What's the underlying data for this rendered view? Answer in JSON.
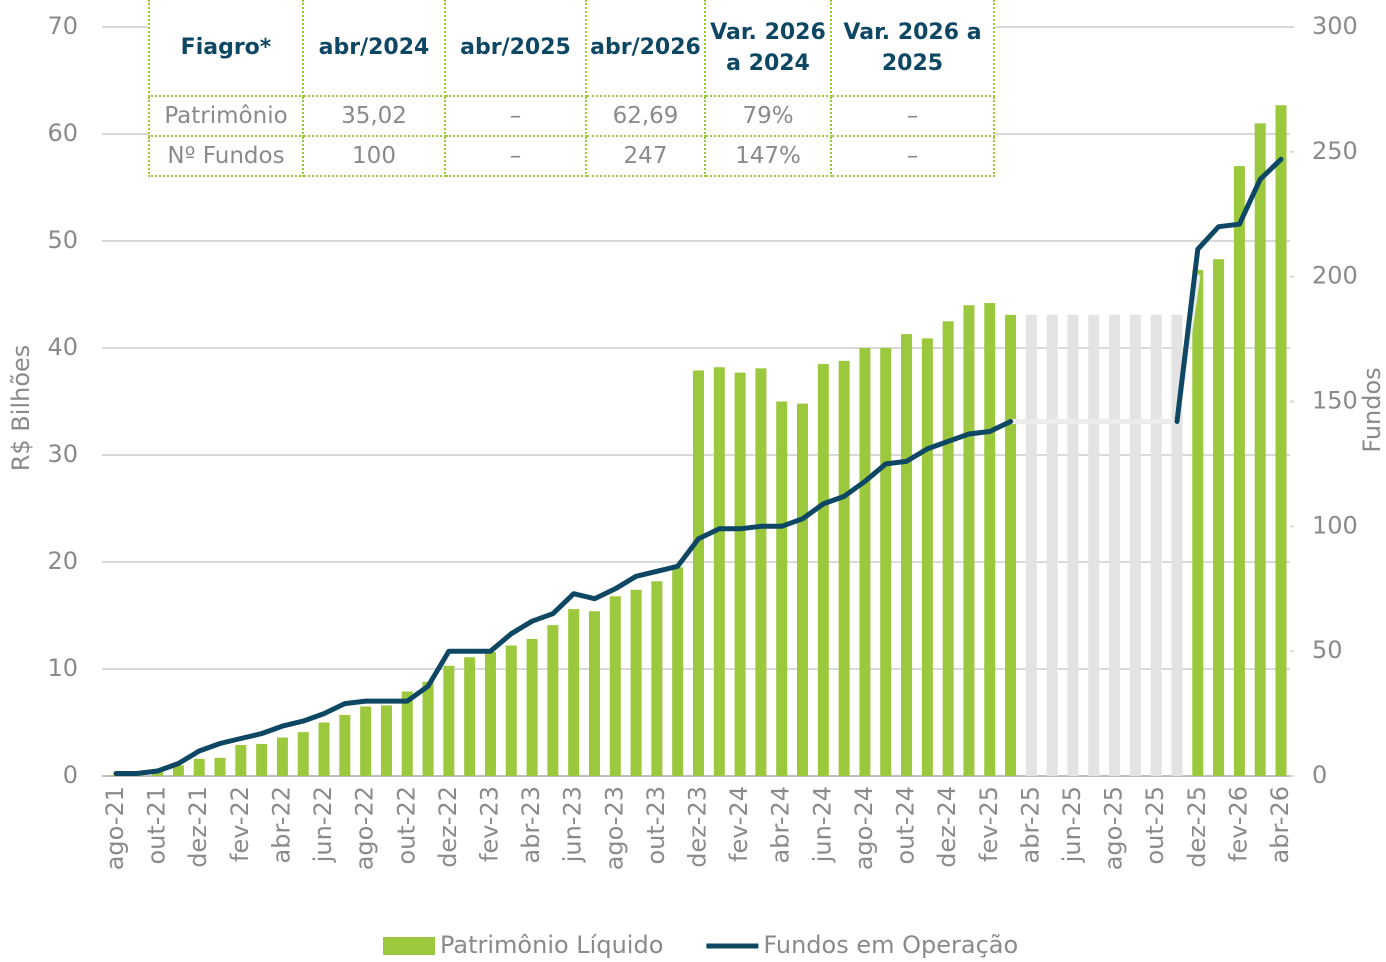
{
  "chart_data": {
    "type": "combo",
    "y_label": "R$ Bilhões",
    "y2_label": "Fundos",
    "categories": [
      "ago-21",
      null,
      "out-21",
      null,
      "dez-21",
      null,
      "fev-22",
      null,
      "abr-22",
      null,
      "jun-22",
      null,
      "ago-22",
      null,
      "out-22",
      null,
      "dez-22",
      null,
      "fev-23",
      null,
      "abr-23",
      null,
      "jun-23",
      null,
      "ago-23",
      null,
      "out-23",
      null,
      "dez-23",
      null,
      "fev-24",
      null,
      "abr-24",
      null,
      "jun-24",
      null,
      "ago-24",
      null,
      "out-24",
      null,
      "dez-24",
      null,
      "fev-25",
      null,
      "abr-25",
      null,
      "jun-25",
      null,
      "ago-25",
      null,
      "out-25",
      null,
      "dez-25",
      null,
      "fev-26",
      null,
      "abr-26"
    ],
    "series": [
      {
        "type": "bar",
        "color": "#e3e3e3",
        "values": [
          null,
          null,
          null,
          null,
          null,
          null,
          null,
          null,
          null,
          null,
          null,
          null,
          null,
          null,
          null,
          null,
          null,
          null,
          null,
          null,
          null,
          null,
          null,
          null,
          null,
          null,
          null,
          null,
          null,
          null,
          null,
          null,
          null,
          null,
          null,
          null,
          null,
          null,
          null,
          null,
          null,
          null,
          null,
          null,
          43.1,
          43.1,
          43.1,
          43.1,
          43.1,
          43.1,
          43.1,
          43.1,
          null,
          null,
          null,
          null,
          null
        ]
      },
      {
        "type": "bar",
        "name": "Patrimônio Líquido",
        "color": "#9bc83c",
        "values": [
          0.1,
          0.2,
          0.5,
          1,
          1.6,
          1.7,
          2.9,
          3,
          3.6,
          4.1,
          5,
          5.7,
          6.5,
          6.6,
          7.9,
          8.8,
          10.3,
          11.1,
          11.6,
          12.2,
          12.8,
          14.1,
          15.6,
          15.4,
          16.8,
          17.4,
          18.2,
          19.5,
          37.9,
          38.2,
          37.7,
          38.1,
          35,
          34.8,
          38.5,
          38.8,
          40,
          40,
          41.3,
          40.9,
          42.5,
          44,
          44.2,
          43.1,
          null,
          null,
          null,
          null,
          null,
          null,
          null,
          null,
          47.3,
          48.3,
          57,
          61,
          62.69
        ]
      },
      {
        "type": "line",
        "axis": "y2",
        "color": "#ececec",
        "values": [
          null,
          null,
          null,
          null,
          null,
          null,
          null,
          null,
          null,
          null,
          null,
          null,
          null,
          null,
          null,
          null,
          null,
          null,
          null,
          null,
          null,
          null,
          null,
          null,
          null,
          null,
          null,
          null,
          null,
          null,
          null,
          null,
          null,
          null,
          null,
          null,
          null,
          null,
          null,
          null,
          null,
          null,
          null,
          142,
          142,
          142,
          142,
          142,
          142,
          142,
          142,
          142,
          200,
          null,
          null,
          null,
          null
        ]
      },
      {
        "type": "line",
        "axis": "y2",
        "name": "Fundos em Operação",
        "color": "#0d4763",
        "values": [
          1,
          1,
          2,
          5,
          10,
          13,
          15,
          17,
          20,
          22,
          25,
          29,
          30,
          30,
          30,
          36,
          50,
          50,
          50,
          57,
          62,
          65,
          73,
          71,
          75,
          80,
          82,
          84,
          95,
          99,
          99,
          100,
          100,
          103,
          109,
          112,
          118,
          125,
          126,
          131,
          134,
          137,
          138,
          142,
          null,
          null,
          null,
          null,
          null,
          null,
          null,
          142,
          211,
          220,
          221,
          239,
          247
        ]
      }
    ],
    "ylim": [
      0,
      70
    ],
    "yticks": [
      0,
      10,
      20,
      30,
      40,
      50,
      60,
      70
    ],
    "y2lim": [
      0,
      300
    ],
    "y2ticks": [
      0,
      50,
      100,
      150,
      200,
      250,
      300
    ],
    "grid": true
  },
  "table": {
    "header": [
      "Fiagro*",
      "abr/2024",
      "abr/2025",
      "abr/2026",
      "Var. 2026 a 2024",
      "Var. 2026 a 2025"
    ],
    "rows": [
      [
        "Patrimônio",
        "35,02",
        "–",
        "62,69",
        "79%",
        "–"
      ],
      [
        "Nº Fundos",
        "100",
        "–",
        "247",
        "147%",
        "–"
      ]
    ]
  }
}
